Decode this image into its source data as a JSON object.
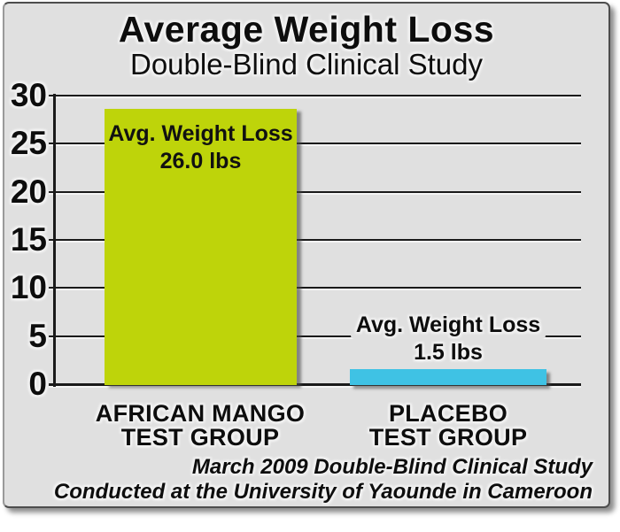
{
  "title": "Average Weight Loss",
  "subtitle": "Double-Blind Clinical Study",
  "footer": {
    "line1": "March 2009 Double-Blind Clinical Study",
    "line2": "Conducted at the University of Yaounde in Cameroon"
  },
  "chart_data": {
    "type": "bar",
    "title": "Average Weight Loss",
    "subtitle": "Double-Blind Clinical Study",
    "categories": [
      "AFRICAN MANGO TEST GROUP",
      "PLACEBO TEST GROUP"
    ],
    "category_lines": [
      [
        "AFRICAN MANGO",
        "TEST GROUP"
      ],
      [
        "PLACEBO",
        "TEST GROUP"
      ]
    ],
    "values": [
      26.0,
      1.5
    ],
    "unit": "lbs",
    "bar_colors": [
      "#bed40a",
      "#3fc2e4"
    ],
    "annotations": [
      {
        "line1": "Avg. Weight Loss",
        "line2": "26.0 lbs"
      },
      {
        "line1": "Avg. Weight Loss",
        "line2": "1.5 lbs"
      }
    ],
    "xlabel": "",
    "ylabel": "",
    "yticks": [
      0,
      5,
      10,
      15,
      20,
      25,
      30
    ],
    "ylim": [
      0,
      30
    ],
    "grid": "horizontal",
    "legend": "none",
    "note": "March 2009 Double-Blind Clinical Study Conducted at the University of Yaounde in Cameroon",
    "colors": {
      "background": "#e0e0e0",
      "text": "#111111",
      "gridline": "#1a1a1a",
      "african_mango_bar": "#bed40a",
      "placebo_bar": "#3fc2e4"
    }
  }
}
